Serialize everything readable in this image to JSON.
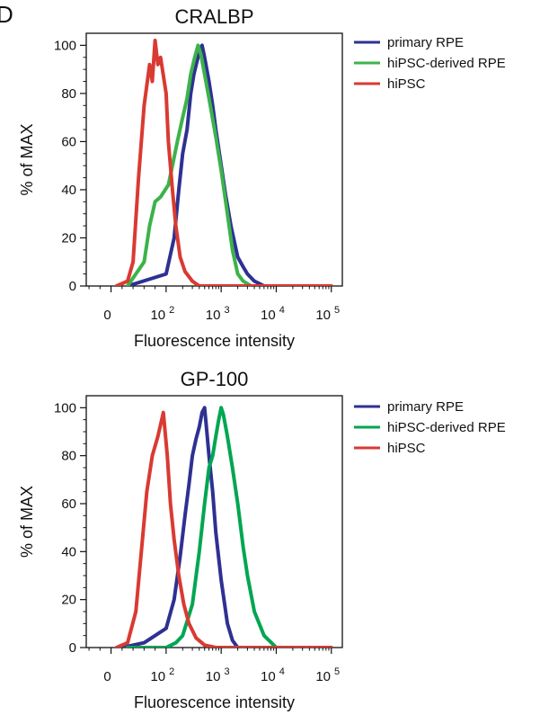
{
  "panel_letter": "D",
  "chart_data": [
    {
      "type": "line",
      "title": "CRALBP",
      "xlabel": "Fluorescence intensity",
      "ylabel": "% of MAX",
      "xscale": "biexponential",
      "ylim": [
        0,
        105
      ],
      "yticks": [
        "0",
        "20",
        "40",
        "60",
        "80",
        "100"
      ],
      "xticks": [
        {
          "base": "0",
          "exp": ""
        },
        {
          "base": "10",
          "exp": "2"
        },
        {
          "base": "10",
          "exp": "3"
        },
        {
          "base": "10",
          "exp": "4"
        },
        {
          "base": "10",
          "exp": "5"
        }
      ],
      "legend": {
        "position": "right"
      },
      "series": [
        {
          "name": "primary RPE",
          "color": "#2e3192",
          "x": [
            30,
            100,
            140,
            170,
            200,
            240,
            280,
            320,
            360,
            400,
            450,
            500,
            600,
            700,
            800,
            1000,
            1200,
            1500,
            2000,
            2500,
            3000,
            4000,
            6000,
            10000,
            100000
          ],
          "y": [
            0,
            5,
            20,
            40,
            55,
            65,
            80,
            88,
            93,
            97,
            100,
            95,
            85,
            75,
            65,
            50,
            38,
            25,
            12,
            8,
            5,
            2,
            0,
            0,
            0
          ]
        },
        {
          "name": "hiPSC-derived RPE",
          "color": "#3cb34a",
          "x": [
            30,
            60,
            70,
            80,
            90,
            110,
            130,
            160,
            200,
            240,
            280,
            330,
            380,
            430,
            500,
            600,
            800,
            1000,
            1300,
            1600,
            2000,
            2500,
            3500,
            100000
          ],
          "y": [
            0,
            10,
            25,
            35,
            37,
            42,
            50,
            60,
            70,
            78,
            88,
            95,
            100,
            96,
            88,
            78,
            62,
            48,
            30,
            15,
            5,
            2,
            0,
            0
          ]
        },
        {
          "name": "hiPSC",
          "color": "#d93a32",
          "x": [
            10,
            30,
            40,
            50,
            60,
            70,
            75,
            80,
            85,
            90,
            100,
            110,
            130,
            150,
            180,
            220,
            300,
            400,
            600,
            1000,
            100000
          ],
          "y": [
            0,
            2,
            10,
            45,
            75,
            92,
            85,
            102,
            92,
            95,
            80,
            60,
            40,
            25,
            12,
            6,
            2,
            0,
            0,
            0,
            0
          ]
        }
      ]
    },
    {
      "type": "line",
      "title": "GP-100",
      "xlabel": "Fluorescence intensity",
      "ylabel": "% of MAX",
      "xscale": "biexponential",
      "ylim": [
        0,
        105
      ],
      "yticks": [
        "0",
        "20",
        "40",
        "60",
        "80",
        "100"
      ],
      "xticks": [
        {
          "base": "0",
          "exp": ""
        },
        {
          "base": "10",
          "exp": "2"
        },
        {
          "base": "10",
          "exp": "3"
        },
        {
          "base": "10",
          "exp": "4"
        },
        {
          "base": "10",
          "exp": "5"
        }
      ],
      "legend": {
        "position": "right"
      },
      "series": [
        {
          "name": "primary RPE",
          "color": "#2e3192",
          "x": [
            20,
            60,
            100,
            140,
            180,
            220,
            260,
            300,
            350,
            400,
            450,
            500,
            550,
            600,
            700,
            800,
            1000,
            1300,
            1600,
            2000,
            3000,
            100000
          ],
          "y": [
            0,
            2,
            8,
            20,
            38,
            55,
            68,
            80,
            87,
            92,
            98,
            100,
            90,
            80,
            65,
            48,
            28,
            10,
            3,
            0,
            0,
            0
          ]
        },
        {
          "name": "hiPSC-derived RPE",
          "color": "#00a651",
          "x": [
            30,
            100,
            150,
            200,
            300,
            400,
            500,
            600,
            700,
            800,
            900,
            1000,
            1100,
            1300,
            1600,
            2000,
            2500,
            3000,
            4000,
            6000,
            10000,
            100000
          ],
          "y": [
            0,
            0,
            2,
            5,
            18,
            40,
            60,
            75,
            80,
            88,
            95,
            100,
            97,
            88,
            75,
            60,
            42,
            30,
            15,
            5,
            0,
            0
          ]
        },
        {
          "name": "hiPSC",
          "color": "#d93a32",
          "x": [
            10,
            30,
            45,
            55,
            65,
            75,
            85,
            95,
            105,
            120,
            140,
            170,
            210,
            260,
            350,
            500,
            800,
            100000
          ],
          "y": [
            0,
            2,
            15,
            40,
            65,
            80,
            88,
            98,
            80,
            60,
            45,
            30,
            18,
            10,
            4,
            1,
            0,
            0
          ]
        }
      ]
    }
  ]
}
